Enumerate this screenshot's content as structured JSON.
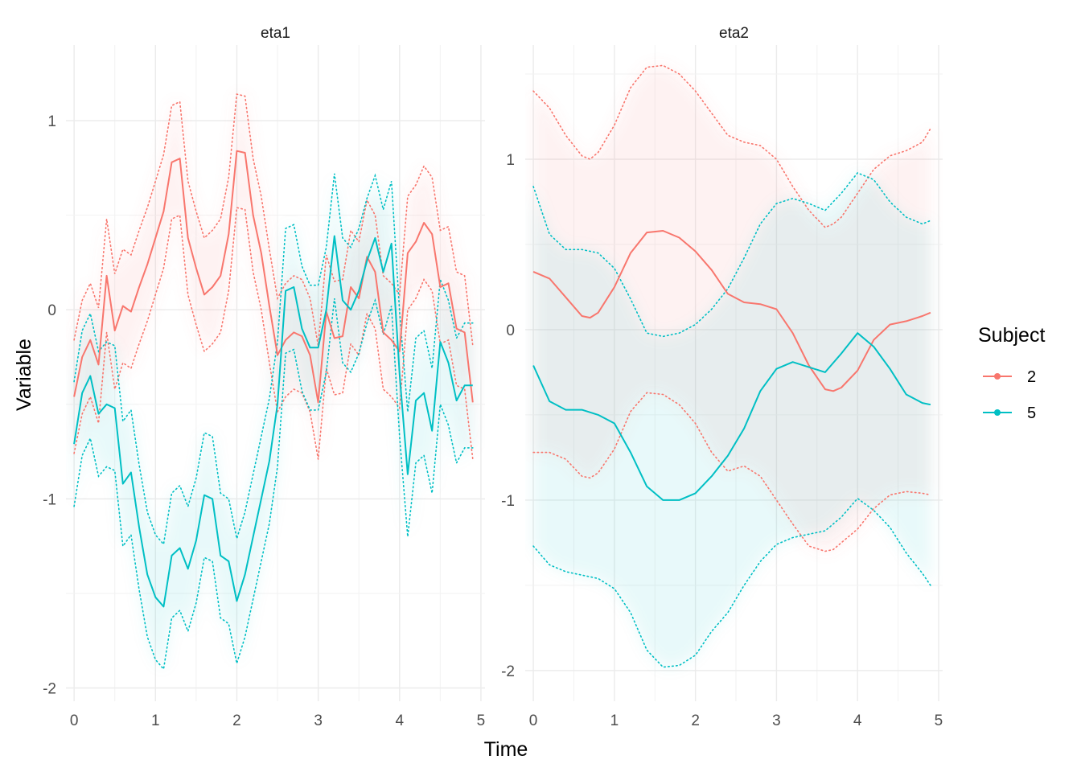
{
  "chart_data": {
    "type": "line",
    "xlabel": "Time",
    "ylabel": "Variable",
    "legend": {
      "title": "Subject",
      "position": "right",
      "entries": [
        "2",
        "5"
      ]
    },
    "colors": {
      "2": "#F8766D",
      "5": "#00BFC4"
    },
    "panels": [
      {
        "title": "eta1",
        "xlim": [
          -0.1,
          5.05
        ],
        "ylim": [
          -2.07,
          1.4
        ],
        "x_ticks": [
          0,
          1,
          2,
          3,
          4,
          5
        ],
        "x_tick_labels": [
          "0",
          "1",
          "2",
          "3",
          "4",
          "5"
        ],
        "y_ticks": [
          -2,
          -1,
          0,
          1
        ],
        "y_tick_labels": [
          "-2",
          "-1",
          "0",
          "1"
        ],
        "series": [
          {
            "name": "2",
            "x": [
              0,
              0.1,
              0.2,
              0.3,
              0.4,
              0.5,
              0.6,
              0.7,
              0.8,
              0.9,
              1.0,
              1.1,
              1.2,
              1.3,
              1.4,
              1.5,
              1.6,
              1.7,
              1.8,
              1.9,
              2.0,
              2.1,
              2.2,
              2.3,
              2.4,
              2.5,
              2.6,
              2.7,
              2.8,
              2.9,
              3.0,
              3.1,
              3.2,
              3.3,
              3.4,
              3.5,
              3.6,
              3.7,
              3.8,
              3.9,
              4.0,
              4.1,
              4.2,
              4.3,
              4.4,
              4.5,
              4.6,
              4.7,
              4.8,
              4.9
            ],
            "values": [
              -0.46,
              -0.25,
              -0.16,
              -0.29,
              0.18,
              -0.11,
              0.02,
              -0.01,
              0.12,
              0.24,
              0.38,
              0.52,
              0.78,
              0.8,
              0.38,
              0.22,
              0.08,
              0.12,
              0.18,
              0.4,
              0.84,
              0.83,
              0.5,
              0.3,
              0.02,
              -0.24,
              -0.16,
              -0.12,
              -0.14,
              -0.24,
              -0.49,
              -0.01,
              -0.15,
              -0.14,
              0.12,
              0.06,
              0.28,
              0.2,
              -0.12,
              -0.16,
              -0.22,
              0.3,
              0.36,
              0.46,
              0.4,
              0.12,
              0.14,
              -0.1,
              -0.12,
              -0.49
            ],
            "lower": [
              -0.76,
              -0.55,
              -0.46,
              -0.6,
              -0.12,
              -0.42,
              -0.28,
              -0.31,
              -0.18,
              -0.06,
              0.08,
              0.22,
              0.48,
              0.5,
              0.08,
              -0.08,
              -0.22,
              -0.18,
              -0.12,
              0.1,
              0.54,
              0.53,
              0.2,
              0.0,
              -0.28,
              -0.54,
              -0.46,
              -0.42,
              -0.44,
              -0.54,
              -0.79,
              -0.31,
              -0.45,
              -0.44,
              -0.18,
              -0.24,
              -0.02,
              -0.1,
              -0.42,
              -0.46,
              -0.52,
              0.0,
              0.06,
              0.16,
              0.1,
              -0.18,
              -0.16,
              -0.4,
              -0.42,
              -0.79
            ],
            "upper": [
              -0.16,
              0.05,
              0.14,
              0.01,
              0.48,
              0.19,
              0.32,
              0.29,
              0.42,
              0.54,
              0.68,
              0.82,
              1.08,
              1.1,
              0.68,
              0.52,
              0.38,
              0.42,
              0.48,
              0.7,
              1.14,
              1.13,
              0.8,
              0.6,
              0.32,
              0.06,
              0.14,
              0.18,
              0.16,
              0.06,
              -0.19,
              0.29,
              0.15,
              0.16,
              0.42,
              0.36,
              0.58,
              0.5,
              0.18,
              0.14,
              0.08,
              0.6,
              0.66,
              0.76,
              0.7,
              0.42,
              0.44,
              0.2,
              0.18,
              -0.19
            ]
          },
          {
            "name": "5",
            "x": [
              0,
              0.1,
              0.2,
              0.3,
              0.4,
              0.5,
              0.6,
              0.7,
              0.8,
              0.9,
              1.0,
              1.1,
              1.2,
              1.3,
              1.4,
              1.5,
              1.6,
              1.7,
              1.8,
              1.9,
              2.0,
              2.1,
              2.2,
              2.3,
              2.4,
              2.5,
              2.6,
              2.7,
              2.8,
              2.9,
              3.0,
              3.1,
              3.2,
              3.3,
              3.4,
              3.5,
              3.6,
              3.7,
              3.8,
              3.9,
              4.0,
              4.1,
              4.2,
              4.3,
              4.4,
              4.5,
              4.6,
              4.7,
              4.8,
              4.9
            ],
            "values": [
              -0.71,
              -0.44,
              -0.35,
              -0.55,
              -0.5,
              -0.52,
              -0.92,
              -0.86,
              -1.15,
              -1.4,
              -1.52,
              -1.57,
              -1.3,
              -1.26,
              -1.37,
              -1.22,
              -0.98,
              -1.0,
              -1.3,
              -1.33,
              -1.54,
              -1.4,
              -1.2,
              -1.0,
              -0.8,
              -0.5,
              0.1,
              0.12,
              -0.1,
              -0.2,
              -0.2,
              0.0,
              0.39,
              0.05,
              0.0,
              0.1,
              0.26,
              0.38,
              0.2,
              0.35,
              -0.34,
              -0.87,
              -0.48,
              -0.44,
              -0.64,
              -0.17,
              -0.28,
              -0.48,
              -0.4,
              -0.4
            ],
            "lower": [
              -1.04,
              -0.77,
              -0.68,
              -0.88,
              -0.83,
              -0.85,
              -1.25,
              -1.19,
              -1.48,
              -1.73,
              -1.85,
              -1.9,
              -1.63,
              -1.59,
              -1.7,
              -1.55,
              -1.31,
              -1.33,
              -1.63,
              -1.66,
              -1.87,
              -1.73,
              -1.53,
              -1.33,
              -1.13,
              -0.83,
              -0.23,
              -0.21,
              -0.43,
              -0.53,
              -0.53,
              -0.33,
              0.06,
              -0.28,
              -0.33,
              -0.23,
              -0.07,
              0.05,
              -0.13,
              0.02,
              -0.67,
              -1.2,
              -0.81,
              -0.77,
              -0.97,
              -0.5,
              -0.61,
              -0.81,
              -0.73,
              -0.73
            ],
            "upper": [
              -0.38,
              -0.11,
              -0.02,
              -0.22,
              -0.17,
              -0.19,
              -0.59,
              -0.53,
              -0.82,
              -1.07,
              -1.19,
              -1.24,
              -0.97,
              -0.93,
              -1.04,
              -0.89,
              -0.65,
              -0.67,
              -0.97,
              -1.0,
              -1.21,
              -1.07,
              -0.87,
              -0.67,
              -0.47,
              -0.17,
              0.43,
              0.45,
              0.23,
              0.13,
              0.13,
              0.33,
              0.72,
              0.38,
              0.33,
              0.43,
              0.59,
              0.71,
              0.53,
              0.68,
              -0.01,
              -0.54,
              -0.15,
              -0.11,
              -0.31,
              0.16,
              0.05,
              -0.15,
              -0.07,
              -0.07
            ]
          }
        ]
      },
      {
        "title": "eta2",
        "xlim": [
          -0.1,
          5.05
        ],
        "ylim": [
          -2.18,
          1.67
        ],
        "x_ticks": [
          0,
          1,
          2,
          3,
          4,
          5
        ],
        "x_tick_labels": [
          "0",
          "1",
          "2",
          "3",
          "4",
          "5"
        ],
        "y_ticks": [
          -2,
          -1,
          0,
          1
        ],
        "y_tick_labels": [
          "-2",
          "-1",
          "0",
          "1"
        ],
        "series": [
          {
            "name": "2",
            "x": [
              0,
              0.2,
              0.4,
              0.6,
              0.7,
              0.8,
              1.0,
              1.2,
              1.4,
              1.6,
              1.8,
              2.0,
              2.2,
              2.4,
              2.6,
              2.8,
              3.0,
              3.2,
              3.4,
              3.6,
              3.7,
              3.8,
              4.0,
              4.2,
              4.4,
              4.6,
              4.8,
              4.9
            ],
            "values": [
              0.34,
              0.3,
              0.19,
              0.08,
              0.07,
              0.1,
              0.25,
              0.45,
              0.57,
              0.58,
              0.54,
              0.46,
              0.35,
              0.21,
              0.16,
              0.15,
              0.12,
              -0.02,
              -0.21,
              -0.35,
              -0.36,
              -0.34,
              -0.24,
              -0.06,
              0.03,
              0.05,
              0.08,
              0.1
            ],
            "lower": [
              -0.72,
              -0.72,
              -0.76,
              -0.86,
              -0.87,
              -0.84,
              -0.7,
              -0.48,
              -0.37,
              -0.38,
              -0.44,
              -0.55,
              -0.72,
              -0.83,
              -0.8,
              -0.86,
              -1.0,
              -1.14,
              -1.27,
              -1.3,
              -1.29,
              -1.25,
              -1.17,
              -1.05,
              -0.97,
              -0.95,
              -0.96,
              -0.97
            ],
            "upper": [
              1.4,
              1.3,
              1.14,
              1.02,
              1.0,
              1.04,
              1.2,
              1.42,
              1.54,
              1.55,
              1.5,
              1.4,
              1.27,
              1.14,
              1.1,
              1.08,
              1.0,
              0.84,
              0.7,
              0.6,
              0.62,
              0.66,
              0.8,
              0.94,
              1.02,
              1.05,
              1.1,
              1.18
            ]
          },
          {
            "name": "5",
            "x": [
              0,
              0.2,
              0.4,
              0.6,
              0.8,
              1.0,
              1.2,
              1.4,
              1.6,
              1.8,
              2.0,
              2.2,
              2.4,
              2.6,
              2.8,
              3.0,
              3.2,
              3.4,
              3.6,
              3.8,
              4.0,
              4.2,
              4.4,
              4.6,
              4.8,
              4.9
            ],
            "values": [
              -0.21,
              -0.42,
              -0.47,
              -0.47,
              -0.5,
              -0.55,
              -0.72,
              -0.92,
              -1.0,
              -1.0,
              -0.96,
              -0.86,
              -0.74,
              -0.58,
              -0.36,
              -0.23,
              -0.19,
              -0.22,
              -0.25,
              -0.14,
              -0.02,
              -0.1,
              -0.23,
              -0.38,
              -0.43,
              -0.44
            ],
            "lower": [
              -1.27,
              -1.38,
              -1.42,
              -1.44,
              -1.46,
              -1.52,
              -1.66,
              -1.88,
              -1.98,
              -1.97,
              -1.91,
              -1.77,
              -1.66,
              -1.5,
              -1.36,
              -1.26,
              -1.22,
              -1.2,
              -1.18,
              -1.1,
              -0.99,
              -1.06,
              -1.16,
              -1.31,
              -1.43,
              -1.5
            ],
            "upper": [
              0.84,
              0.56,
              0.47,
              0.47,
              0.45,
              0.36,
              0.18,
              -0.02,
              -0.04,
              -0.02,
              0.03,
              0.12,
              0.24,
              0.42,
              0.62,
              0.74,
              0.77,
              0.74,
              0.7,
              0.8,
              0.92,
              0.88,
              0.75,
              0.66,
              0.62,
              0.64
            ]
          }
        ]
      }
    ]
  }
}
